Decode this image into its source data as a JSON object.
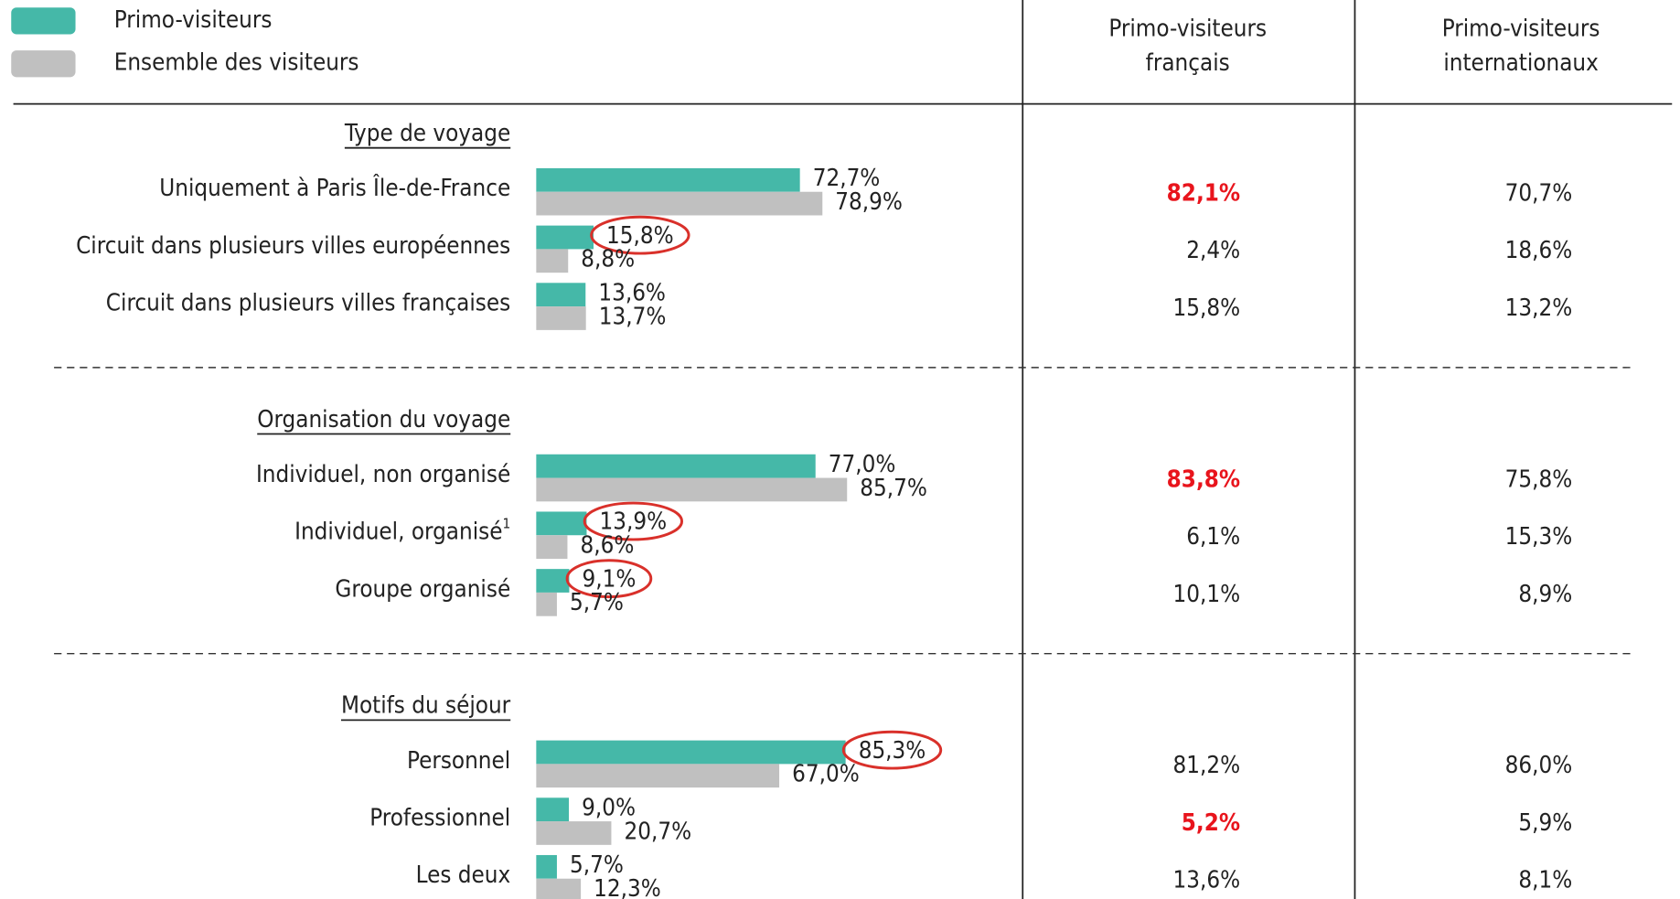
{
  "chart_data": {
    "type": "bar",
    "orientation": "horizontal",
    "series": [
      {
        "name": "Primo-visiteurs",
        "color": "#45b8a8"
      },
      {
        "name": "Ensemble des visiteurs",
        "color": "#c0c0c0"
      }
    ],
    "columns": [
      "Primo-visiteurs\nfrançais",
      "Primo-visiteurs\ninternationaux"
    ],
    "highlight_color": "#e8141c",
    "circle_color": "#d9302a",
    "groups": [
      {
        "title": "Type de voyage",
        "categories": [
          "Uniquement à Paris Île-de-France",
          "Circuit dans plusieurs villes européennes",
          "Circuit dans plusieurs villes françaises"
        ],
        "values": [
          [
            72.7,
            15.8,
            13.6
          ],
          [
            78.9,
            8.8,
            13.7
          ]
        ],
        "value_labels": [
          [
            "72,7%",
            "15,8%",
            "13,6%"
          ],
          [
            "78,9%",
            "8,8%",
            "13,7%"
          ]
        ],
        "circled": [
          false,
          true,
          false
        ],
        "table": [
          [
            "82,1%",
            "70,7%"
          ],
          [
            "2,4%",
            "18,6%"
          ],
          [
            "15,8%",
            "13,2%"
          ]
        ],
        "highlighted": [
          [
            true,
            false
          ],
          [
            false,
            false
          ],
          [
            false,
            false
          ]
        ]
      },
      {
        "title": "Organisation du voyage",
        "categories": [
          "Individuel, non organisé",
          "Individuel, organisé",
          "Groupe organisé"
        ],
        "footnotes": [
          null,
          "1",
          null
        ],
        "values": [
          [
            77.0,
            13.9,
            9.1
          ],
          [
            85.7,
            8.6,
            5.7
          ]
        ],
        "value_labels": [
          [
            "77,0%",
            "13,9%",
            "9,1%"
          ],
          [
            "85,7%",
            "8,6%",
            "5,7%"
          ]
        ],
        "circled": [
          false,
          true,
          true
        ],
        "table": [
          [
            "83,8%",
            "75,8%"
          ],
          [
            "6,1%",
            "15,3%"
          ],
          [
            "10,1%",
            "8,9%"
          ]
        ],
        "highlighted": [
          [
            true,
            false
          ],
          [
            false,
            false
          ],
          [
            false,
            false
          ]
        ]
      },
      {
        "title": "Motifs du séjour",
        "categories": [
          "Personnel",
          "Professionnel",
          "Les deux"
        ],
        "values": [
          [
            85.3,
            9.0,
            5.7
          ],
          [
            67.0,
            20.7,
            12.3
          ]
        ],
        "value_labels": [
          [
            "85,3%",
            "9,0%",
            "5,7%"
          ],
          [
            "67,0%",
            "20,7%",
            "12,3%"
          ]
        ],
        "circled": [
          true,
          false,
          false
        ],
        "table": [
          [
            "81,2%",
            "86,0%"
          ],
          [
            "5,2%",
            "5,9%"
          ],
          [
            "13,6%",
            "8,1%"
          ]
        ],
        "highlighted": [
          [
            false,
            false
          ],
          [
            true,
            false
          ],
          [
            false,
            false
          ]
        ]
      }
    ]
  }
}
